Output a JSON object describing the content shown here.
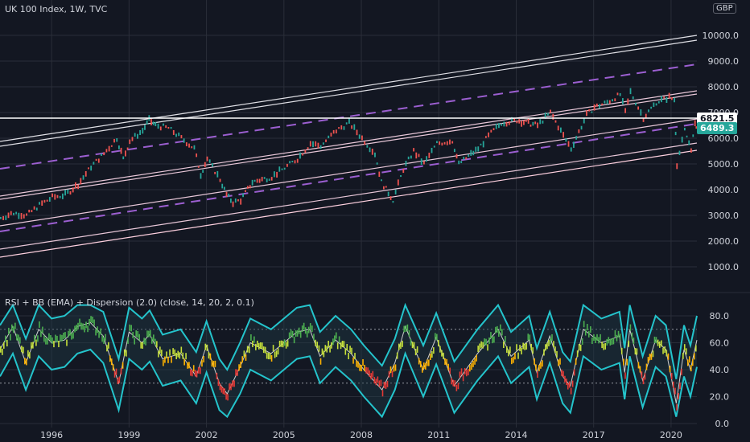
{
  "header": {
    "title": "UK 100 Index, 1W, TVC",
    "currency": "GBP",
    "indicator_title": "RSI + BB (EMA) + Dispersion (2.0) (close, 14, 20, 2, 0.1)"
  },
  "price_tags": {
    "horizontal_level": "6821.5",
    "last_price": "6489.3"
  },
  "colors": {
    "background": "#131722",
    "candle_up": "#26a69a",
    "candle_down": "#ef5350",
    "channel_lines": "#e8c7d8",
    "midlines": "#9c5fd1",
    "rsi_band": "#24c4cc",
    "grid": "#2a2e39"
  },
  "chart_data": [
    {
      "type": "line",
      "title": "UK 100 Index, 1W, TVC",
      "ylim": [
        0,
        10500
      ],
      "y_ticks": [
        "1000.0",
        "2000.0",
        "3000.0",
        "4000.0",
        "5000.0",
        "6000.0",
        "7000.0",
        "8000.0",
        "9000.0",
        "10000.0"
      ],
      "x_ticks": [
        {
          "year": 1996,
          "label": "1996"
        },
        {
          "year": 1999,
          "label": "1999"
        },
        {
          "year": 2002,
          "label": "2002"
        },
        {
          "year": 2005,
          "label": "2005"
        },
        {
          "year": 2008,
          "label": "2008"
        },
        {
          "year": 2011,
          "label": "2011"
        },
        {
          "year": 2014,
          "label": "2014"
        },
        {
          "year": 2017,
          "label": "2017"
        },
        {
          "year": 2020,
          "label": "2020"
        }
      ],
      "xlim": [
        1994.0,
        2021.0
      ],
      "series": [
        {
          "values": [
            [
              1994.0,
              2900
            ],
            [
              1994.5,
              3100
            ],
            [
              1995.0,
              3000
            ],
            [
              1995.5,
              3400
            ],
            [
              1996.0,
              3700
            ],
            [
              1996.5,
              3800
            ],
            [
              1997.0,
              4200
            ],
            [
              1997.5,
              4900
            ],
            [
              1998.0,
              5400
            ],
            [
              1998.5,
              6000
            ],
            [
              1998.75,
              5200
            ],
            [
              1999.0,
              5900
            ],
            [
              1999.5,
              6300
            ],
            [
              1999.75,
              6700
            ],
            [
              2000.0,
              6500
            ],
            [
              2000.5,
              6400
            ],
            [
              2001.0,
              6000
            ],
            [
              2001.5,
              5600
            ],
            [
              2001.75,
              4600
            ],
            [
              2002.0,
              5200
            ],
            [
              2002.5,
              4400
            ],
            [
              2002.75,
              3800
            ],
            [
              2003.0,
              3500
            ],
            [
              2003.3,
              3600
            ],
            [
              2003.75,
              4300
            ],
            [
              2004.5,
              4500
            ],
            [
              2005.0,
              4850
            ],
            [
              2005.5,
              5200
            ],
            [
              2006.0,
              5800
            ],
            [
              2006.4,
              5700
            ],
            [
              2007.0,
              6300
            ],
            [
              2007.5,
              6600
            ],
            [
              2008.0,
              6000
            ],
            [
              2008.5,
              5400
            ],
            [
              2008.75,
              4300
            ],
            [
              2009.2,
              3600
            ],
            [
              2009.6,
              4800
            ],
            [
              2010.0,
              5500
            ],
            [
              2010.4,
              5000
            ],
            [
              2010.9,
              5800
            ],
            [
              2011.5,
              5900
            ],
            [
              2011.75,
              5000
            ],
            [
              2012.5,
              5600
            ],
            [
              2013.0,
              6200
            ],
            [
              2013.4,
              6600
            ],
            [
              2014.0,
              6700
            ],
            [
              2014.8,
              6500
            ],
            [
              2015.3,
              7000
            ],
            [
              2015.8,
              6100
            ],
            [
              2016.1,
              5600
            ],
            [
              2016.7,
              6900
            ],
            [
              2017.0,
              7200
            ],
            [
              2017.5,
              7400
            ],
            [
              2018.0,
              7700
            ],
            [
              2018.2,
              7000
            ],
            [
              2018.4,
              7800
            ],
            [
              2018.9,
              6800
            ],
            [
              2019.4,
              7400
            ],
            [
              2019.9,
              7600
            ],
            [
              2020.1,
              7500
            ],
            [
              2020.2,
              5000
            ],
            [
              2020.5,
              6300
            ],
            [
              2020.75,
              5600
            ],
            [
              2020.9,
              6500
            ],
            [
              2021.0,
              6489
            ]
          ]
        }
      ]
    },
    {
      "type": "line",
      "title": "RSI + BB (EMA) + Dispersion (2.0) (close, 14, 20, 2, 0.1)",
      "ylim": [
        0,
        90
      ],
      "y_ticks": [
        "0.0",
        "20.0",
        "40.0",
        "60.0",
        "80.0"
      ],
      "reference_levels": [
        70,
        30
      ],
      "series": [
        {
          "name": "RSI",
          "values": [
            [
              1994.0,
              55
            ],
            [
              1994.5,
              72
            ],
            [
              1995.0,
              45
            ],
            [
              1995.5,
              70
            ],
            [
              1996.0,
              60
            ],
            [
              1996.5,
              62
            ],
            [
              1997.0,
              72
            ],
            [
              1997.5,
              75
            ],
            [
              1998.0,
              65
            ],
            [
              1998.6,
              30
            ],
            [
              1999.0,
              68
            ],
            [
              1999.5,
              60
            ],
            [
              1999.8,
              66
            ],
            [
              2000.3,
              48
            ],
            [
              2001.0,
              52
            ],
            [
              2001.6,
              35
            ],
            [
              2002.0,
              58
            ],
            [
              2002.5,
              30
            ],
            [
              2002.8,
              22
            ],
            [
              2003.3,
              42
            ],
            [
              2003.7,
              60
            ],
            [
              2004.5,
              52
            ],
            [
              2005.0,
              60
            ],
            [
              2005.5,
              68
            ],
            [
              2006.0,
              70
            ],
            [
              2006.4,
              50
            ],
            [
              2007.0,
              62
            ],
            [
              2007.6,
              52
            ],
            [
              2008.1,
              40
            ],
            [
              2008.8,
              25
            ],
            [
              2009.3,
              45
            ],
            [
              2009.7,
              72
            ],
            [
              2010.4,
              40
            ],
            [
              2010.9,
              64
            ],
            [
              2011.6,
              28
            ],
            [
              2012.5,
              52
            ],
            [
              2013.3,
              70
            ],
            [
              2013.8,
              50
            ],
            [
              2014.5,
              62
            ],
            [
              2014.8,
              38
            ],
            [
              2015.3,
              65
            ],
            [
              2015.8,
              35
            ],
            [
              2016.1,
              28
            ],
            [
              2016.6,
              70
            ],
            [
              2017.3,
              60
            ],
            [
              2018.0,
              65
            ],
            [
              2018.2,
              38
            ],
            [
              2018.4,
              70
            ],
            [
              2018.9,
              32
            ],
            [
              2019.4,
              62
            ],
            [
              2019.8,
              55
            ],
            [
              2020.2,
              15
            ],
            [
              2020.5,
              55
            ],
            [
              2020.75,
              40
            ],
            [
              2021.0,
              62
            ]
          ]
        }
      ]
    }
  ]
}
